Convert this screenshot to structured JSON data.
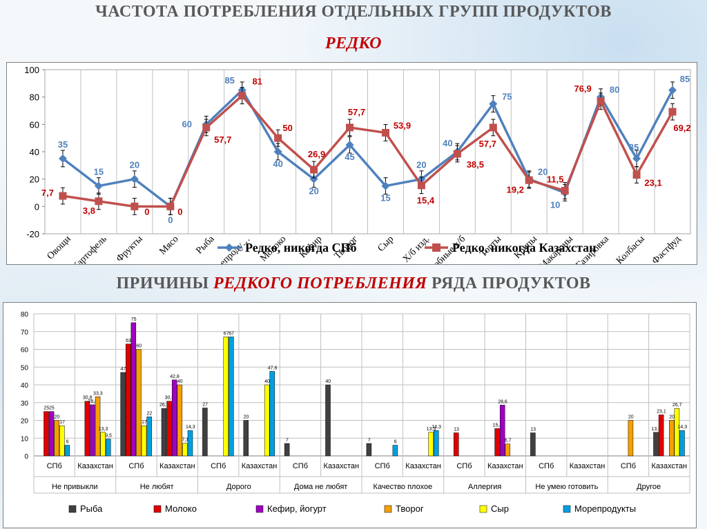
{
  "titles": {
    "main": "ЧАСТОТА  ПОТРЕБЛЕНИЯ  ОТДЕЛЬНЫХ  ГРУПП  ПРОДУКТОВ",
    "sub": "РЕДКО",
    "second_prefix": "ПРИЧИНЫ ",
    "second_highlight": "РЕДКОГО ПОТРЕБЛЕНИЯ",
    "second_suffix": " РЯДА  ПРОДУКТОВ"
  },
  "colors": {
    "spb": "#4f81bd",
    "kz": "#c0504d",
    "fish": "#404040",
    "milk": "#e00000",
    "kefir": "#a000c0",
    "tvorog": "#f5a000",
    "cheese": "#ffff00",
    "seafood": "#00a0e0"
  },
  "chart_data": [
    {
      "type": "line",
      "categories": [
        "Овощи",
        "Картофель",
        "Фрукты",
        "Мясо",
        "Рыба",
        "Морепроду…",
        "Молоко",
        "Кефир",
        "Творог",
        "Сыр",
        "Х/б изд.",
        "Сдобные х/б",
        "Торты",
        "Крупы",
        "Макароны",
        "Газировка",
        "Колбасы",
        "Фастфуд"
      ],
      "ylim": [
        -20,
        100
      ],
      "yticks": [
        "-20",
        "0",
        "20",
        "40",
        "60",
        "80",
        "100"
      ],
      "series": [
        {
          "name": "Редко, никогда СПб",
          "color": "#4f81bd",
          "marker": "diamond",
          "values": [
            35,
            15,
            20,
            0,
            60,
            85,
            40,
            20,
            45,
            15,
            20,
            40,
            75,
            20,
            10,
            80,
            35,
            85
          ],
          "labels": [
            "35",
            "15",
            "20",
            "0",
            "60",
            "85",
            "40",
            "20",
            "45",
            "15",
            "20",
            "40",
            "75",
            "20",
            "10",
            "80",
            "35",
            "85"
          ]
        },
        {
          "name": "Редко, никогда Казахстан",
          "color": "#c0504d",
          "marker": "square",
          "values": [
            7.7,
            3.8,
            0,
            0,
            57.7,
            81,
            50,
            26.9,
            57.7,
            53.9,
            15.4,
            38.5,
            57.7,
            19.2,
            11.5,
            76.9,
            23.1,
            69.2
          ],
          "labels": [
            "7,7",
            "3,8",
            "0",
            "0",
            "57,7",
            "81",
            "50",
            "26,9",
            "57,7",
            "53,9",
            "15,4",
            "38,5",
            "57,7",
            "19,2",
            "11,5",
            "76,9",
            "23,1",
            "69,2"
          ]
        }
      ]
    },
    {
      "type": "bar",
      "ylim": [
        0,
        80
      ],
      "yticks": [
        "0",
        "10",
        "20",
        "30",
        "40",
        "50",
        "60",
        "70",
        "80"
      ],
      "legend": [
        "Рыба",
        "Молоко",
        "Кефир, йогурт",
        "Творог",
        "Сыр",
        "Морепродукты"
      ],
      "groups": [
        {
          "name": "Не привыкли",
          "sub": [
            {
              "label": "СПб",
              "values": [
                null,
                25,
                25,
                20,
                17,
                6
              ],
              "labels": [
                "",
                "25",
                "25",
                "20",
                "17",
                "6"
              ]
            },
            {
              "label": "Казахстан",
              "values": [
                null,
                30.8,
                28.8,
                33.3,
                13.3,
                9.5
              ],
              "labels": [
                "",
                "30,8",
                "28,8",
                "33,3",
                "13,3",
                "9,5"
              ]
            }
          ]
        },
        {
          "name": "Не любят",
          "sub": [
            {
              "label": "СПб",
              "values": [
                47,
                63,
                75,
                60,
                17,
                22
              ],
              "labels": [
                "47",
                "63",
                "75",
                "60",
                "17",
                "22"
              ]
            },
            {
              "label": "Казахстан",
              "values": [
                26.7,
                30.8,
                42.8,
                40,
                7.1,
                14.3
              ],
              "labels": [
                "26,7",
                "30,8",
                "42,8",
                "40",
                "7,1",
                "14,3"
              ]
            }
          ]
        },
        {
          "name": "Дорого",
          "sub": [
            {
              "label": "СПб",
              "values": [
                27,
                null,
                null,
                null,
                67,
                67
              ],
              "labels": [
                "27",
                "",
                "",
                "",
                "67",
                "67"
              ]
            },
            {
              "label": "Казахстан",
              "values": [
                20,
                null,
                null,
                null,
                40,
                47.6
              ],
              "labels": [
                "20",
                "",
                "",
                "",
                "40",
                "47,6"
              ]
            }
          ]
        },
        {
          "name": "Дома не любят",
          "sub": [
            {
              "label": "СПб",
              "values": [
                7,
                null,
                null,
                null,
                null,
                null
              ],
              "labels": [
                "7",
                "",
                "",
                "",
                "",
                ""
              ]
            },
            {
              "label": "Казахстан",
              "values": [
                40,
                null,
                null,
                null,
                null,
                null
              ],
              "labels": [
                "40",
                "",
                "",
                "",
                "",
                ""
              ]
            }
          ]
        },
        {
          "name": "Качество плохое",
          "sub": [
            {
              "label": "СПб",
              "values": [
                7,
                null,
                null,
                null,
                null,
                6
              ],
              "labels": [
                "7",
                "",
                "",
                "",
                "",
                "6"
              ]
            },
            {
              "label": "Казахстан",
              "values": [
                null,
                null,
                null,
                null,
                13.3,
                14.3
              ],
              "labels": [
                "",
                "",
                "",
                "",
                "13,3",
                "14,3"
              ]
            }
          ]
        },
        {
          "name": "Аллергия",
          "sub": [
            {
              "label": "СПб",
              "values": [
                null,
                13,
                null,
                null,
                null,
                null
              ],
              "labels": [
                "",
                "13",
                "",
                "",
                "",
                ""
              ]
            },
            {
              "label": "Казахстан",
              "values": [
                null,
                15.4,
                28.6,
                6.7,
                null,
                null
              ],
              "labels": [
                "",
                "15,4",
                "28,6",
                "6,7",
                "",
                ""
              ]
            }
          ]
        },
        {
          "name": "Не умею готовить",
          "sub": [
            {
              "label": "СПб",
              "values": [
                13,
                null,
                null,
                null,
                null,
                null
              ],
              "labels": [
                "13",
                "",
                "",
                "",
                "",
                ""
              ]
            },
            {
              "label": "Казахстан",
              "values": [
                null,
                null,
                null,
                null,
                null,
                null
              ],
              "labels": [
                "",
                "",
                "",
                "",
                "",
                ""
              ]
            }
          ]
        },
        {
          "name": "Другое",
          "sub": [
            {
              "label": "СПб",
              "values": [
                null,
                null,
                null,
                20,
                null,
                null
              ],
              "labels": [
                "",
                "",
                "",
                "20",
                "",
                ""
              ]
            },
            {
              "label": "Казахстан",
              "values": [
                13.3,
                23.1,
                null,
                20,
                26.7,
                14.3
              ],
              "labels": [
                "13,3",
                "23,1",
                "",
                "20",
                "26,7",
                "14,3"
              ]
            }
          ]
        }
      ]
    }
  ]
}
